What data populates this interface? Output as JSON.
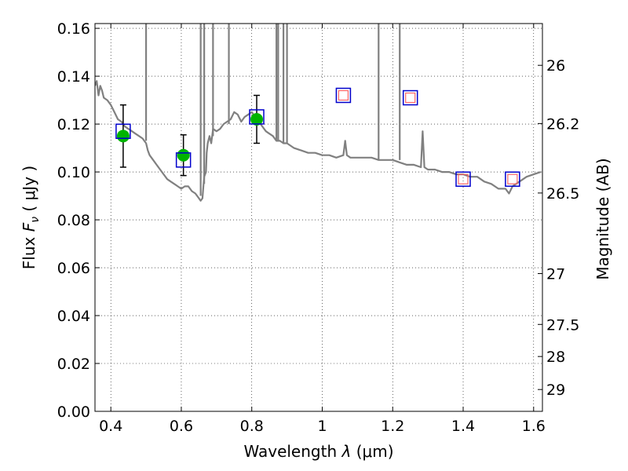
{
  "chart_data": {
    "type": "scatter",
    "title": "",
    "xlabel_prefix": "Wavelength",
    "xlabel_symbol": "λ",
    "xlabel_units": "(μm)",
    "ylabel_prefix": "Flux",
    "ylabel_symbol": "F",
    "ylabel_subscript": "ν",
    "ylabel_units": "( μJy )",
    "y2label": "Magnitude (AB)",
    "xlim": [
      0.355,
      1.625
    ],
    "ylim": [
      0.0,
      0.162
    ],
    "grid": true,
    "x_ticks": [
      {
        "value": 0.4,
        "label": "0.4"
      },
      {
        "value": 0.6,
        "label": "0.6"
      },
      {
        "value": 0.8,
        "label": "0.8"
      },
      {
        "value": 1.0,
        "label": "1"
      },
      {
        "value": 1.2,
        "label": "1.2"
      },
      {
        "value": 1.4,
        "label": "1.4"
      },
      {
        "value": 1.6,
        "label": "1.6"
      }
    ],
    "y_ticks": [
      {
        "value": 0.0,
        "label": "0.00"
      },
      {
        "value": 0.02,
        "label": "0.02"
      },
      {
        "value": 0.04,
        "label": "0.04"
      },
      {
        "value": 0.06,
        "label": "0.06"
      },
      {
        "value": 0.08,
        "label": "0.08"
      },
      {
        "value": 0.1,
        "label": "0.10"
      },
      {
        "value": 0.12,
        "label": "0.12"
      },
      {
        "value": 0.14,
        "label": "0.14"
      },
      {
        "value": 0.16,
        "label": "0.16"
      }
    ],
    "y2_ticks": [
      {
        "value": 26,
        "label": "26"
      },
      {
        "value": 26.2,
        "label": "26.2"
      },
      {
        "value": 26.5,
        "label": "26.5"
      },
      {
        "value": 27,
        "label": "27"
      },
      {
        "value": 27.5,
        "label": "27.5"
      },
      {
        "value": 28,
        "label": "28"
      },
      {
        "value": 29,
        "label": "29"
      }
    ],
    "series": [
      {
        "name": "model spectrum",
        "kind": "line",
        "color": "#808080",
        "x": [
          0.355,
          0.36,
          0.365,
          0.37,
          0.375,
          0.38,
          0.39,
          0.4,
          0.41,
          0.42,
          0.43,
          0.44,
          0.45,
          0.46,
          0.47,
          0.48,
          0.49,
          0.495,
          0.5,
          0.505,
          0.51,
          0.52,
          0.53,
          0.54,
          0.55,
          0.56,
          0.57,
          0.58,
          0.59,
          0.6,
          0.61,
          0.62,
          0.63,
          0.64,
          0.65,
          0.655,
          0.66,
          0.665,
          0.67,
          0.672,
          0.675,
          0.68,
          0.685,
          0.69,
          0.7,
          0.71,
          0.72,
          0.73,
          0.74,
          0.75,
          0.76,
          0.77,
          0.78,
          0.79,
          0.8,
          0.81,
          0.82,
          0.83,
          0.84,
          0.85,
          0.86,
          0.87,
          0.88,
          0.89,
          0.9,
          0.92,
          0.94,
          0.96,
          0.98,
          1.0,
          1.02,
          1.04,
          1.06,
          1.065,
          1.07,
          1.08,
          1.1,
          1.12,
          1.14,
          1.16,
          1.18,
          1.2,
          1.22,
          1.24,
          1.26,
          1.28,
          1.285,
          1.29,
          1.3,
          1.32,
          1.34,
          1.36,
          1.38,
          1.4,
          1.42,
          1.44,
          1.46,
          1.48,
          1.5,
          1.52,
          1.53,
          1.54,
          1.55,
          1.56,
          1.58,
          1.6,
          1.62
        ],
        "y": [
          0.136,
          0.138,
          0.132,
          0.136,
          0.134,
          0.131,
          0.13,
          0.128,
          0.125,
          0.122,
          0.121,
          0.119,
          0.118,
          0.117,
          0.116,
          0.115,
          0.114,
          0.113,
          0.112,
          0.109,
          0.107,
          0.105,
          0.103,
          0.101,
          0.099,
          0.097,
          0.096,
          0.095,
          0.094,
          0.093,
          0.094,
          0.094,
          0.092,
          0.091,
          0.089,
          0.088,
          0.089,
          0.098,
          0.1,
          0.108,
          0.112,
          0.115,
          0.112,
          0.118,
          0.117,
          0.118,
          0.12,
          0.121,
          0.122,
          0.125,
          0.124,
          0.121,
          0.123,
          0.124,
          0.125,
          0.123,
          0.121,
          0.119,
          0.117,
          0.116,
          0.115,
          0.113,
          0.113,
          0.112,
          0.112,
          0.11,
          0.109,
          0.108,
          0.108,
          0.107,
          0.107,
          0.106,
          0.107,
          0.113,
          0.107,
          0.106,
          0.106,
          0.106,
          0.106,
          0.105,
          0.105,
          0.105,
          0.104,
          0.103,
          0.103,
          0.102,
          0.117,
          0.102,
          0.101,
          0.101,
          0.1,
          0.1,
          0.099,
          0.099,
          0.098,
          0.098,
          0.096,
          0.095,
          0.093,
          0.093,
          0.091,
          0.094,
          0.095,
          0.096,
          0.098,
          0.099,
          0.1
        ]
      },
      {
        "name": "emission lines",
        "kind": "spikes",
        "color": "#808080",
        "x": [
          0.5,
          0.655,
          0.665,
          0.69,
          0.735,
          0.87,
          0.875,
          0.89,
          0.9,
          1.16,
          1.22
        ],
        "base": [
          0.113,
          0.09,
          0.095,
          0.115,
          0.12,
          0.113,
          0.113,
          0.112,
          0.112,
          0.105,
          0.105
        ]
      },
      {
        "name": "observed photometry",
        "kind": "points",
        "color": "#00b400",
        "x": [
          0.435,
          0.606,
          0.814
        ],
        "y": [
          0.115,
          0.107,
          0.122
        ],
        "err": [
          0.013,
          0.0085,
          0.01
        ]
      },
      {
        "name": "model photometry",
        "kind": "squares",
        "color": "#0000cc",
        "x": [
          0.435,
          0.606,
          0.814,
          1.06,
          1.25,
          1.4,
          1.54
        ],
        "y": [
          0.117,
          0.105,
          0.123,
          0.132,
          0.131,
          0.097,
          0.097
        ]
      },
      {
        "name": "predicted photometry",
        "kind": "open-squares",
        "color": "#ff6666",
        "x": [
          1.06,
          1.25,
          1.4,
          1.54
        ],
        "y": [
          0.132,
          0.131,
          0.097,
          0.097
        ]
      }
    ]
  }
}
